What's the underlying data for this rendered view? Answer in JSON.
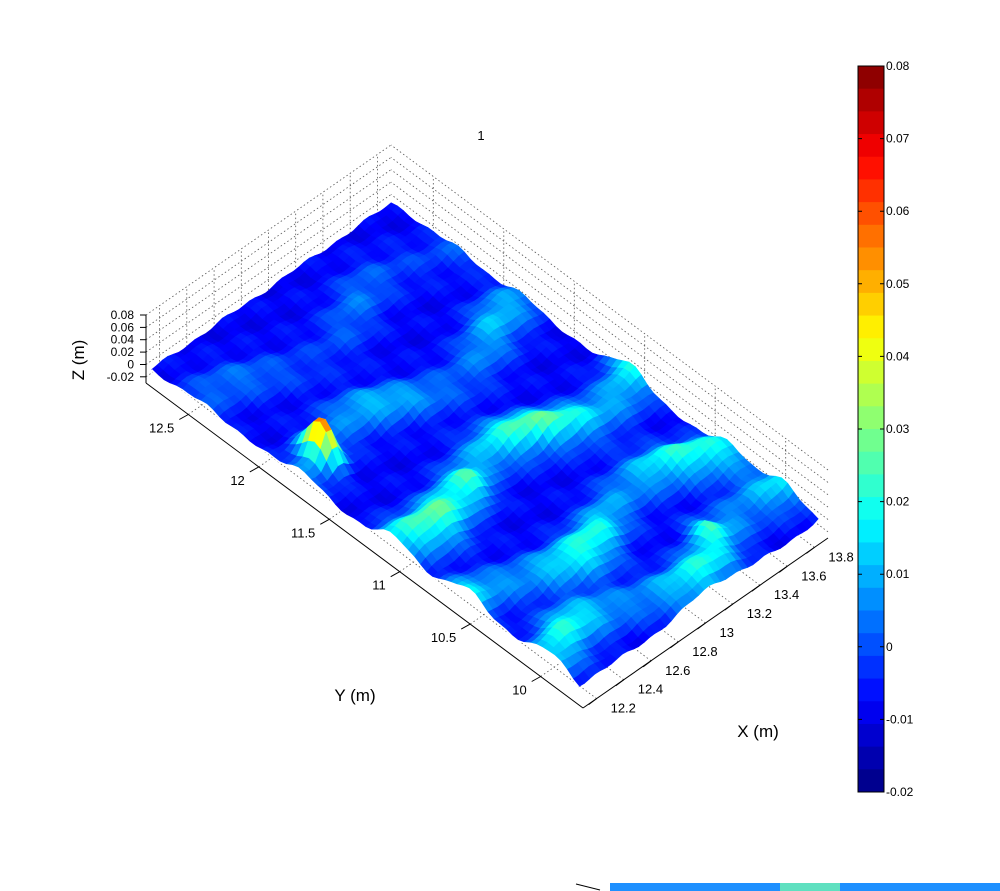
{
  "figure": {
    "title": "1"
  },
  "chart_data": {
    "type": "heatmap",
    "subtype": "3d-surface",
    "colormap": "jet",
    "grid": true,
    "xlabel": "X (m)",
    "ylabel": "Y (m)",
    "zlabel": "Z (m)",
    "xlim": [
      12.1,
      13.9
    ],
    "ylim": [
      9.7,
      12.8
    ],
    "zlim": [
      -0.03,
      0.08
    ],
    "x_ticks": [
      "12.2",
      "12.4",
      "12.6",
      "12.8",
      "13",
      "13.2",
      "13.4",
      "13.6",
      "13.8"
    ],
    "y_ticks": [
      "10",
      "10.5",
      "11",
      "11.5",
      "12",
      "12.5"
    ],
    "z_ticks": [
      "0.08",
      "0.06",
      "0.04",
      "0.02",
      "0",
      "-0.02"
    ],
    "colorbar": {
      "min": -0.02,
      "max": 0.08,
      "ticks": [
        "0.08",
        "0.07",
        "0.06",
        "0.05",
        "0.04",
        "0.03",
        "0.02",
        "0.01",
        "0",
        "-0.01",
        "-0.02"
      ]
    },
    "ridges": [
      {
        "y": 12.35,
        "z_peak": 0.012
      },
      {
        "y": 11.75,
        "z_peak": 0.02
      },
      {
        "y": 11.1,
        "z_peak": 0.035
      },
      {
        "y": 10.45,
        "z_peak": 0.03
      },
      {
        "y": 9.95,
        "z_peak": 0.028
      }
    ],
    "peaks": [
      {
        "x": 12.3,
        "y": 11.75,
        "z": 0.08
      },
      {
        "x": 13.35,
        "y": 10.05,
        "z": 0.035
      },
      {
        "x": 12.7,
        "y": 11.05,
        "z": 0.038
      }
    ]
  }
}
